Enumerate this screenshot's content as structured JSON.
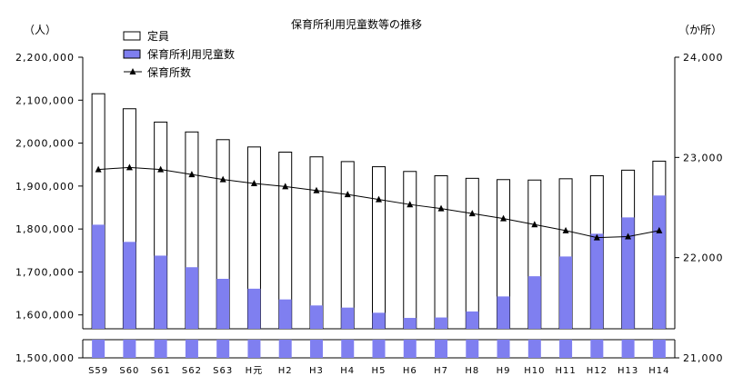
{
  "chart_data": {
    "type": "bar",
    "title": "保育所利用児童数等の推移",
    "y_left_unit": "（人）",
    "y_right_unit": "（か所）",
    "categories": [
      "S59",
      "S60",
      "S61",
      "S62",
      "S63",
      "H元",
      "H2",
      "H3",
      "H4",
      "H5",
      "H6",
      "H7",
      "H8",
      "H9",
      "H10",
      "H11",
      "H12",
      "H13",
      "H14"
    ],
    "y_left_ticks": [
      "1,500,000",
      "1,600,000",
      "1,700,000",
      "1,800,000",
      "1,900,000",
      "2,000,000",
      "2,100,000",
      "2,200,000"
    ],
    "y_right_ticks": [
      "21,000",
      "22,000",
      "23,000",
      "24,000"
    ],
    "ylim_left": [
      1500000,
      2200000
    ],
    "ylim_right": [
      21000,
      24000
    ],
    "legend_placement": "top-left",
    "series": [
      {
        "name": "定員",
        "kind": "bar",
        "color": "#ffffff",
        "values": [
          2115000,
          2080000,
          2049000,
          2026000,
          2008000,
          1991000,
          1979000,
          1968000,
          1957000,
          1945000,
          1934000,
          1924000,
          1918000,
          1915000,
          1914000,
          1917000,
          1924000,
          1937000,
          1958000
        ]
      },
      {
        "name": "保育所利用児童数",
        "kind": "bar",
        "color": "#7f7ff0",
        "values": [
          1810000,
          1770000,
          1738000,
          1711000,
          1684000,
          1661000,
          1636000,
          1622000,
          1617000,
          1605000,
          1593000,
          1594000,
          1608000,
          1643000,
          1690000,
          1736000,
          1789000,
          1827000,
          1878000
        ]
      },
      {
        "name": "保育所数",
        "kind": "line",
        "axis": "right",
        "color": "#000000",
        "values": [
          22880,
          22900,
          22880,
          22830,
          22780,
          22740,
          22710,
          22670,
          22630,
          22580,
          22530,
          22490,
          22440,
          22390,
          22330,
          22270,
          22200,
          22210,
          22270
        ]
      }
    ]
  }
}
